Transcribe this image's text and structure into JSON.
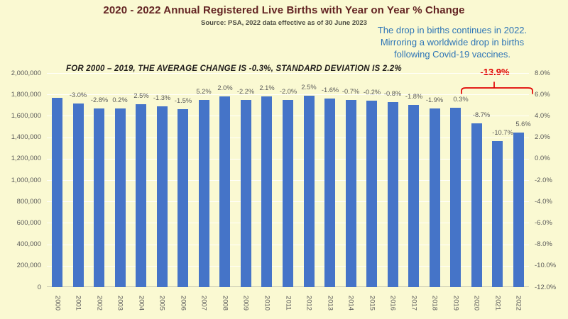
{
  "page": {
    "title": "2020 - 2022 Annual Registered Live Births with Year on Year % Change",
    "subtitle": "Source: PSA, 2022 data effective as of 30 June 2023"
  },
  "annotations": {
    "drop_note_lines": [
      "The drop in births continues in 2022.",
      "Mirroring a worldwide drop in births",
      "following Covid-19 vaccines."
    ],
    "stats_note": "FOR 2000 – 2019, THE AVERAGE CHANGE IS -0.3%, STANDARD DEVIATION IS 2.2%",
    "bracket_label": "-13.9%",
    "bracket_spans_years": "2020–2022"
  },
  "chart_data": {
    "type": "bar",
    "title": "2020 - 2022 Annual Registered Live Births with Year on Year % Change",
    "subtitle": "Source: PSA, 2022 data effective as of 30 June 2023",
    "categories": [
      "2000",
      "2001",
      "2002",
      "2003",
      "2004",
      "2005",
      "2006",
      "2007",
      "2008",
      "2009",
      "2010",
      "2011",
      "2012",
      "2013",
      "2014",
      "2015",
      "2016",
      "2017",
      "2018",
      "2019",
      "2020",
      "2021",
      "2022"
    ],
    "series": [
      {
        "name": "Registered live births (bars, left axis, estimated from bar heights)",
        "values": [
          1766000,
          1714000,
          1667000,
          1669000,
          1711000,
          1689000,
          1663000,
          1750000,
          1784000,
          1746000,
          1783000,
          1747000,
          1790000,
          1762000,
          1749000,
          1745000,
          1731000,
          1701000,
          1668000,
          1674000,
          1529000,
          1365000,
          1441000
        ]
      },
      {
        "name": "Year on year % change (data labels, right axis)",
        "labels": [
          null,
          "-3.0%",
          "-2.8%",
          "0.2%",
          "2.5%",
          "-1.3%",
          "-1.5%",
          "5.2%",
          "2.0%",
          "-2.2%",
          "2.1%",
          "-2.0%",
          "2.5%",
          "-1.6%",
          "-0.7%",
          "-0.2%",
          "-0.8%",
          "-1.8%",
          "-1.9%",
          "0.3%",
          "-8.7%",
          "-10.7%",
          "5.6%"
        ]
      }
    ],
    "left_axis": {
      "min": 0,
      "max": 2000000,
      "ticks": [
        "2,000,000",
        "1,800,000",
        "1,600,000",
        "1,400,000",
        "1,200,000",
        "1,000,000",
        "800,000",
        "600,000",
        "400,000",
        "200,000",
        "0"
      ]
    },
    "right_axis": {
      "min": -12,
      "max": 8,
      "ticks": [
        "8.0%",
        "6.0%",
        "4.0%",
        "2.0%",
        "0.0%",
        "-2.0%",
        "-4.0%",
        "-6.0%",
        "-8.0%",
        "-10.0%",
        "-12.0%"
      ]
    },
    "grid": true,
    "legend": "none",
    "xlabel": "",
    "ylabel": ""
  },
  "colors": {
    "bg": "#faf9d2",
    "bar": "#4574c8",
    "title": "#632423",
    "subtitle": "#4d4d42",
    "note_blue": "#2e75b6",
    "note_red": "#e00000",
    "tick": "#595959"
  }
}
